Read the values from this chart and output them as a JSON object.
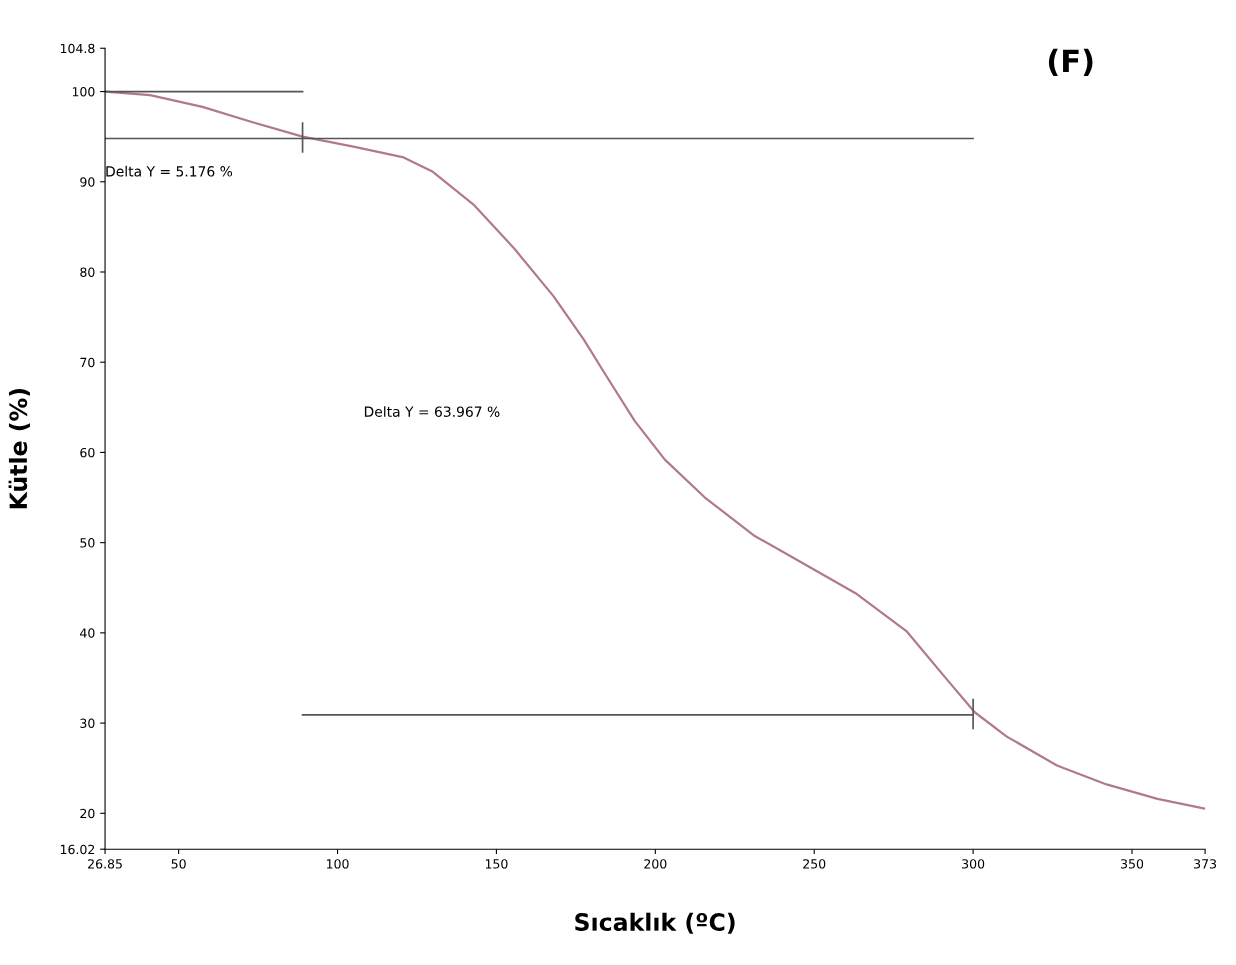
{
  "chart_data": {
    "type": "line",
    "title": "(F)",
    "xlabel": "Sıcaklık (ºC)",
    "ylabel": "Kütle (%)",
    "xlim": [
      26.85,
      373
    ],
    "ylim": [
      16.02,
      104.8
    ],
    "xticks": [
      26.85,
      50,
      100,
      150,
      200,
      250,
      300,
      350,
      373
    ],
    "yticks": [
      16.02,
      20,
      30,
      40,
      50,
      60,
      70,
      80,
      90,
      100,
      104.8
    ],
    "grid": false,
    "legend": false,
    "marker": "none",
    "line_style": "solid",
    "series": [
      {
        "color": "#b07a8a",
        "x": [
          26.85,
          41,
          57.5,
          73.3,
          89,
          105,
          120.8,
          130,
          143,
          155.6,
          168,
          177.5,
          184,
          193.5,
          203,
          215.6,
          231,
          247,
          263,
          279,
          291.6,
          300.5,
          310.6,
          326.4,
          342,
          358,
          373
        ],
        "values": [
          100,
          99.6,
          98.3,
          96.6,
          95.0,
          93.9,
          92.7,
          91.1,
          87.4,
          82.6,
          77.3,
          72.5,
          68.8,
          63.5,
          59.2,
          55.0,
          50.8,
          47.6,
          44.4,
          40.2,
          34.9,
          31.2,
          28.5,
          25.3,
          23.2,
          21.6,
          20.5
        ]
      },
      {
        "color": "#555555",
        "x": [
          26.85,
          89
        ],
        "values": [
          100,
          100
        ]
      },
      {
        "color": "#555555",
        "x": [
          27,
          300
        ],
        "values": [
          94.8,
          94.8
        ]
      },
      {
        "color": "#555555",
        "x": [
          89,
          300
        ],
        "values": [
          30.9,
          30.9
        ]
      },
      {
        "color": "#555555",
        "x": [
          89,
          89
        ],
        "values": [
          93.3,
          96.5
        ]
      },
      {
        "color": "#555555",
        "x": [
          300,
          300
        ],
        "values": [
          29.4,
          32.6
        ]
      }
    ],
    "annotations": [
      "Delta Y = 5.176 %",
      "Delta Y = 63.967 %"
    ]
  }
}
